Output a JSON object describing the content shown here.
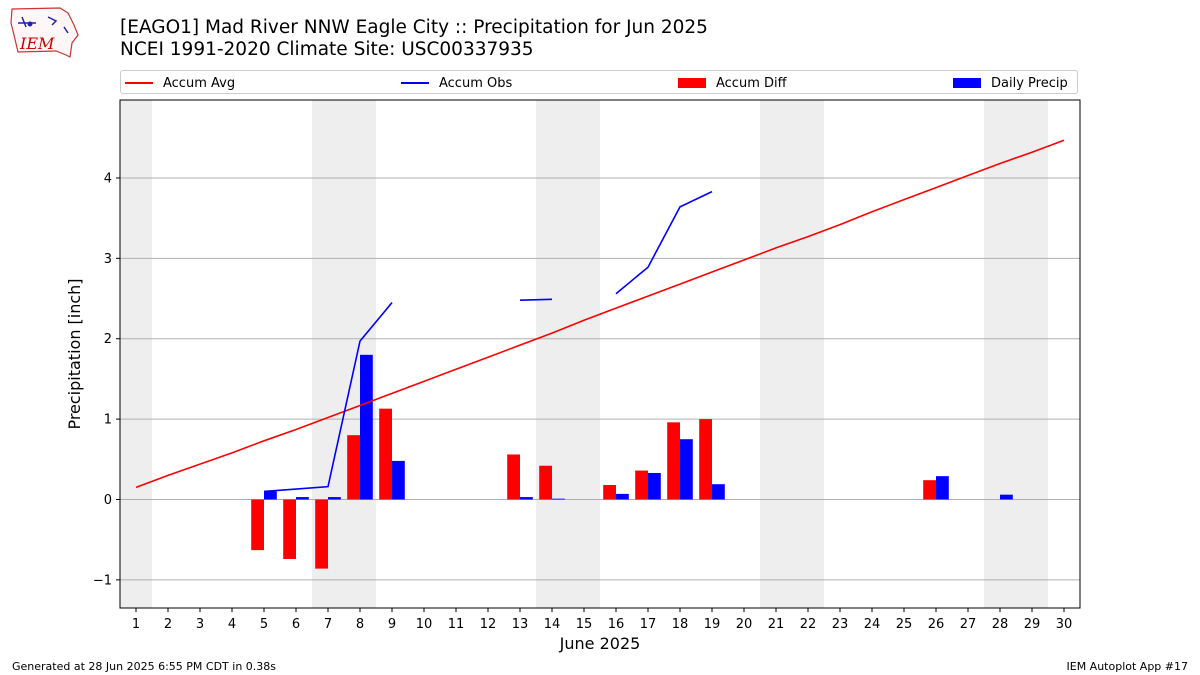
{
  "header": {
    "title_line1": "[EAGO1] Mad River  NNW Eagle City :: Precipitation for Jun 2025",
    "title_line2": "NCEI 1991-2020 Climate Site: USC00337935"
  },
  "logo": {
    "text": "IEM"
  },
  "legend": {
    "accum_avg": "Accum Avg",
    "accum_obs": "Accum Obs",
    "accum_diff": "Accum Diff",
    "daily_precip": "Daily Precip"
  },
  "footer": {
    "left": "Generated at 28 Jun 2025 6:55 PM CDT in 0.38s",
    "right": "IEM Autoplot App #17"
  },
  "colors": {
    "avg": "#ff0000",
    "obs": "#0000ff",
    "diff": "#ff0000",
    "daily": "#0000ff",
    "weekend": "#eeeeee",
    "grid": "#b0b0b0"
  },
  "chart_data": {
    "type": "bar",
    "title": "[EAGO1] Mad River  NNW Eagle City :: Precipitation for Jun 2025",
    "subtitle": "NCEI 1991-2020 Climate Site: USC00337935",
    "xlabel": "June 2025",
    "ylabel": "Precipitation [inch]",
    "xlim": [
      0.5,
      30.5
    ],
    "ylim": [
      -1.35,
      4.97
    ],
    "yticks": [
      -1,
      0,
      1,
      2,
      3,
      4
    ],
    "ytick_labels": [
      "−1",
      "0",
      "1",
      "2",
      "3",
      "4"
    ],
    "x": [
      1,
      2,
      3,
      4,
      5,
      6,
      7,
      8,
      9,
      10,
      11,
      12,
      13,
      14,
      15,
      16,
      17,
      18,
      19,
      20,
      21,
      22,
      23,
      24,
      25,
      26,
      27,
      28,
      29,
      30
    ],
    "grid": "horizontal",
    "legend_position": "top",
    "weekend_bands": [
      [
        0.5,
        1.5
      ],
      [
        6.5,
        8.5
      ],
      [
        13.5,
        15.5
      ],
      [
        20.5,
        22.5
      ],
      [
        27.5,
        29.5
      ]
    ],
    "series": [
      {
        "name": "Accum Avg",
        "kind": "line",
        "color": "#ff0000",
        "values": [
          0.15,
          0.3,
          0.44,
          0.58,
          0.73,
          0.87,
          1.02,
          1.17,
          1.32,
          1.47,
          1.62,
          1.77,
          1.92,
          2.07,
          2.23,
          2.38,
          2.53,
          2.68,
          2.83,
          2.98,
          3.13,
          3.27,
          3.42,
          3.58,
          3.73,
          3.88,
          4.03,
          4.18,
          4.32,
          4.47
        ]
      },
      {
        "name": "Accum Obs",
        "kind": "line",
        "color": "#0000ff",
        "values": [
          null,
          null,
          null,
          null,
          0.1,
          0.13,
          0.16,
          1.97,
          2.45,
          null,
          null,
          null,
          2.48,
          2.49,
          null,
          2.56,
          2.89,
          3.64,
          3.83,
          null,
          null,
          null,
          null,
          null,
          null,
          null,
          null,
          null,
          null,
          null
        ]
      },
      {
        "name": "Accum Diff",
        "kind": "bar",
        "color": "#ff0000",
        "values": [
          null,
          null,
          null,
          null,
          -0.63,
          -0.74,
          -0.86,
          0.8,
          1.13,
          null,
          null,
          null,
          0.56,
          0.42,
          null,
          0.18,
          0.36,
          0.96,
          1.0,
          null,
          null,
          null,
          null,
          null,
          null,
          0.24,
          null,
          null,
          null,
          null
        ]
      },
      {
        "name": "Daily Precip",
        "kind": "bar",
        "color": "#0000ff",
        "values": [
          null,
          null,
          null,
          null,
          0.1,
          0.03,
          0.03,
          1.8,
          0.48,
          null,
          null,
          null,
          0.03,
          0.01,
          null,
          0.07,
          0.33,
          0.75,
          0.19,
          null,
          null,
          null,
          null,
          null,
          null,
          0.29,
          null,
          0.06,
          null,
          null
        ]
      }
    ]
  }
}
